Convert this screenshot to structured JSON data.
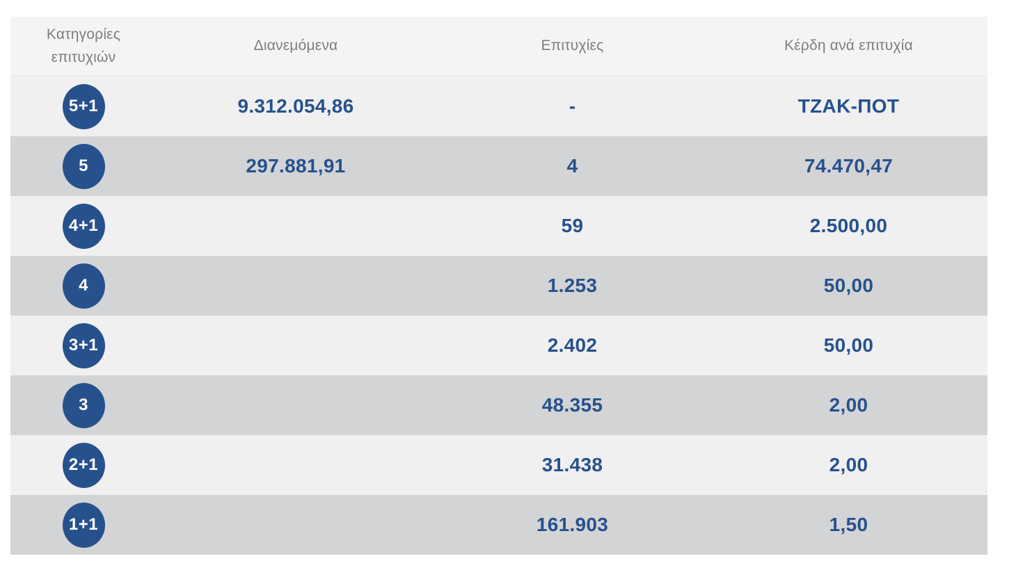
{
  "table": {
    "columns": [
      "Κατηγορίες επιτυχιών",
      "Διανεμόμενα",
      "Επιτυχίες",
      "Κέρδη ανά επιτυχία"
    ],
    "rows": [
      {
        "category": "5+1",
        "distributed": "9.312.054,86",
        "winners": "-",
        "prize": "ΤΖΑΚ-ΠΟΤ"
      },
      {
        "category": "5",
        "distributed": "297.881,91",
        "winners": "4",
        "prize": "74.470,47"
      },
      {
        "category": "4+1",
        "distributed": "",
        "winners": "59",
        "prize": "2.500,00"
      },
      {
        "category": "4",
        "distributed": "",
        "winners": "1.253",
        "prize": "50,00"
      },
      {
        "category": "3+1",
        "distributed": "",
        "winners": "2.402",
        "prize": "50,00"
      },
      {
        "category": "3",
        "distributed": "",
        "winners": "48.355",
        "prize": "2,00"
      },
      {
        "category": "2+1",
        "distributed": "",
        "winners": "31.438",
        "prize": "2,00"
      },
      {
        "category": "1+1",
        "distributed": "",
        "winners": "161.903",
        "prize": "1,50"
      }
    ]
  },
  "colors": {
    "accent_navy": "#27518c",
    "row_light": "#f0f0f1",
    "row_dark": "#d3d4d6",
    "header_bg": "#f4f4f5",
    "header_text": "#7c7e81"
  }
}
